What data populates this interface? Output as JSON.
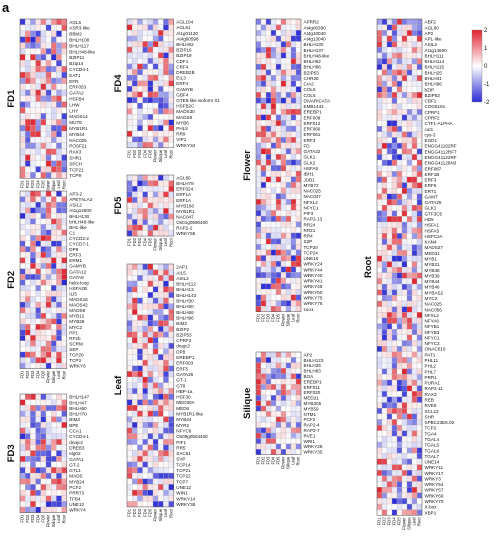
{
  "panel_label": "a",
  "chart_data": {
    "type": "heatmap",
    "columns": [
      "FD1",
      "FD2",
      "FD3",
      "FD4",
      "FD5",
      "Flower",
      "Silique",
      "Leaf",
      "Root"
    ],
    "colorbar": {
      "ticks": [
        2,
        1,
        0,
        -1,
        -2
      ],
      "low": "#2b2bd6",
      "mid": "#ffffff",
      "high": "#e0232e"
    },
    "groups": [
      {
        "name": "FD1",
        "genes": [
          "AGL5",
          "ASR3-like",
          "BBM2",
          "BHLH108",
          "BHLH117",
          "BHLH48-like",
          "BZIP11",
          "Bzip14",
          "CYCD4-1",
          "EAT1",
          "EFR",
          "ERF053",
          "GATA2",
          "HSFB4",
          "LHW",
          "LHY",
          "MADS14",
          "MUTE",
          "MYB1R1",
          "MYB44",
          "NAC025",
          "POSF21",
          "RAX3",
          "SHR1",
          "SPCH",
          "TCP21",
          "TCP9"
        ]
      },
      {
        "name": "FD2",
        "genes": [
          "AP3-2",
          "APETALA3",
          "ASIL2",
          "At1g14600",
          "BHLH130",
          "bHLH48-like",
          "BH1-like",
          "C1",
          "CYCD2-2",
          "CYCD7-1",
          "DP8",
          "ERF3",
          "ERM1",
          "GAMYB",
          "GATA12",
          "GATA9",
          "helix-loop",
          "HSFA2B",
          "ILI5",
          "MADS16",
          "MADS42",
          "MADS6",
          "MYB12",
          "MYB26",
          "MYC2",
          "PP1",
          "RF2b",
          "SCRM",
          "SEP",
          "TCP20",
          "TCP3",
          "WRKY6"
        ]
      },
      {
        "name": "FD3",
        "genes": [
          "BHLH147",
          "BHLH47",
          "BHLH60",
          "BHLH70",
          "BIM2",
          "BPE",
          "CCA1",
          "CYCD4-1",
          "dnajc2",
          "DREB3",
          "elg02",
          "GATA1",
          "GT-2",
          "GTL1",
          "MADS",
          "MYB24",
          "PCF2",
          "PRR73",
          "TFB4",
          "UNE12",
          "WRKY4"
        ]
      },
      {
        "name": "FD4",
        "genes": [
          "AGL104",
          "AGL61",
          "Al1g01120",
          "At4g00598",
          "BHLH62",
          "BZIP16",
          "BZIP19",
          "CDF1",
          "CRF4",
          "DREB2B",
          "EIL3",
          "ERF4",
          "GAMYB",
          "GBF4",
          "GTE9-like isoform X1",
          "HSFB2C",
          "MADS30",
          "MADS6",
          "MYB6",
          "PHL5",
          "RR9",
          "VIP1",
          "WRKY34"
        ]
      },
      {
        "name": "FD5",
        "genes": [
          "AGL80",
          "BHLH78",
          "ERF024",
          "ERF1A",
          "ERF1A",
          "MYB108",
          "MYB1R1",
          "NAC047",
          "Os01g0690400",
          "RAP2-2",
          "WRKY55"
        ]
      },
      {
        "name": "Flower",
        "genes": [
          "APRR2",
          "At4g00390",
          "At4g10040",
          "At4g13040",
          "BHLH130",
          "BHLH137",
          "BHLH48-like",
          "BHLH62",
          "BHLH86",
          "BZIP53",
          "CHR28",
          "CIA2",
          "COL5",
          "COL6",
          "DIVARICATA",
          "EMB1444",
          "EREBP1",
          "ERF008",
          "ERF012",
          "ERF060",
          "ERF061",
          "ERF3",
          "FD",
          "GATA22",
          "GLK1",
          "GLK2",
          "HSFA5",
          "IBH1",
          "JUB1",
          "MYB72",
          "NAC025",
          "NAC047",
          "NFXL2",
          "NFYC1",
          "PIF3",
          "RAP2-13",
          "RR24",
          "RR21",
          "RR4",
          "S2P",
          "TCP20",
          "TCP24",
          "UNE10",
          "WRKY24",
          "WRKY44",
          "WRKY40",
          "WRKY41",
          "WRKY48",
          "WRKY50",
          "WRKY75",
          "WRKY76",
          "zuo1"
        ]
      },
      {
        "name": "Silique",
        "genes": [
          "AP2",
          "BHLH123",
          "BHLH25",
          "BHLH83",
          "BOA",
          "EREBP1",
          "ERF011",
          "ERF020",
          "MED21",
          "MYB305",
          "MYB59",
          "NTM1",
          "PCF2",
          "RAP2-4",
          "RAP2-7",
          "RVE1",
          "WRI1",
          "WRKY28",
          "WRKY35"
        ]
      },
      {
        "name": "Leaf",
        "genes": [
          "2AP1",
          "AIL5",
          "ASIL2",
          "BHLH112",
          "BHLH13",
          "BHLH143",
          "BHLH30",
          "BHLH60",
          "BHLH66",
          "BHLH96",
          "BIM2",
          "BZIP2",
          "BZIP53",
          "CPRF2",
          "dnajc2",
          "DP8",
          "EREBP1",
          "ERF003",
          "ERF5",
          "GATA26",
          "GT-1",
          "GT8",
          "HBP-1a",
          "HSF30",
          "MED30A",
          "MED6",
          "MYB1R1-like",
          "MYB44",
          "MYR2",
          "NFYC6",
          "Os09g0504400",
          "PIF1",
          "RR5",
          "SAC51",
          "SVP",
          "TCP14",
          "TCP21",
          "TCP22",
          "TCP7",
          "UNE12",
          "WIN1",
          "WRKY14",
          "WRKY38"
        ]
      },
      {
        "name": "Root",
        "genes": [
          "ABF2",
          "AGL80",
          "AP2",
          "APL-like",
          "ASIL2",
          "At1g14600",
          "BHLH111",
          "BHLH114",
          "BHLH115",
          "BHLH25",
          "BHLH41",
          "BHLH96",
          "bZIP",
          "BZIP53",
          "CBF1",
          "COG5151",
          "CPRF1",
          "CPRF2",
          "CTF1-ALPHA",
          "cut1",
          "cys-3",
          "EGD1",
          "ENGG41102RF",
          "ENGG4112RF7",
          "ENGG41122RF",
          "ENGG41128N3",
          "ERF087",
          "ERF1B",
          "ERF3",
          "ERF5",
          "ERT1",
          "GAMT",
          "GATA25",
          "GLK1",
          "GTF3C5",
          "HD5",
          "HSFA1",
          "HSFA5",
          "HSFC2A",
          "KAN4",
          "MADS27",
          "MED31",
          "MYB1",
          "MYB21",
          "MYB38",
          "MYB39",
          "MYB44",
          "MYB46",
          "MYBAS2",
          "MYC2",
          "NAC025",
          "NAC056",
          "NFXL2",
          "NFYA6",
          "NFYB1",
          "NFYB3",
          "NFYC1",
          "NFYC3",
          "ONAC010",
          "PAT1",
          "PHL11",
          "PHL2",
          "PHL7",
          "PRR1",
          "PURA1",
          "RAP2-11",
          "RAX3",
          "REB",
          "RVE6",
          "SCL23",
          "SHR",
          "SPBC23E6.02",
          "TCP2",
          "TGA4",
          "TGAL4",
          "TGAL5",
          "TGAL6",
          "TGAL7",
          "UNE14",
          "WRKY11",
          "WRKY17",
          "WRKY3",
          "WRKY54",
          "WRKY57",
          "WRKY69",
          "WRKY70",
          "X-box",
          "XBP1"
        ]
      }
    ]
  }
}
